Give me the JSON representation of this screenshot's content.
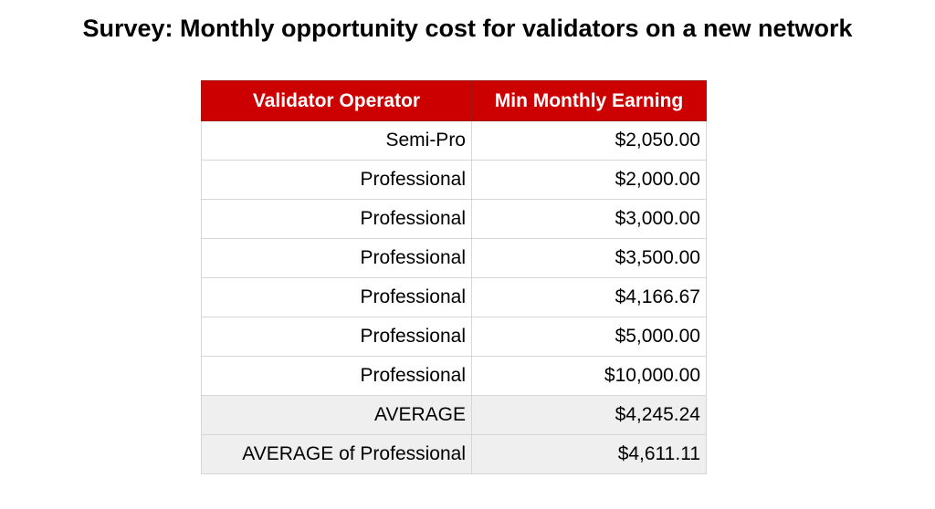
{
  "chart_data": {
    "type": "table",
    "title": "Survey: Monthly opportunity cost for validators on a new network",
    "header_color": "#cc0000",
    "summary_row_color": "#efefef",
    "columns": [
      "Validator Operator",
      "Min Monthly Earning"
    ],
    "rows": [
      {
        "operator": "Semi-Pro",
        "earning": "$2,050.00",
        "value": 2050.0
      },
      {
        "operator": "Professional",
        "earning": "$2,000.00",
        "value": 2000.0
      },
      {
        "operator": "Professional",
        "earning": "$3,000.00",
        "value": 3000.0
      },
      {
        "operator": "Professional",
        "earning": "$3,500.00",
        "value": 3500.0
      },
      {
        "operator": "Professional",
        "earning": "$4,166.67",
        "value": 4166.67
      },
      {
        "operator": "Professional",
        "earning": "$5,000.00",
        "value": 5000.0
      },
      {
        "operator": "Professional",
        "earning": "$10,000.00",
        "value": 10000.0
      }
    ],
    "summary_rows": [
      {
        "operator": "AVERAGE",
        "earning": "$4,245.24",
        "value": 4245.24
      },
      {
        "operator": "AVERAGE of Professional",
        "earning": "$4,611.11",
        "value": 4611.11
      }
    ]
  }
}
